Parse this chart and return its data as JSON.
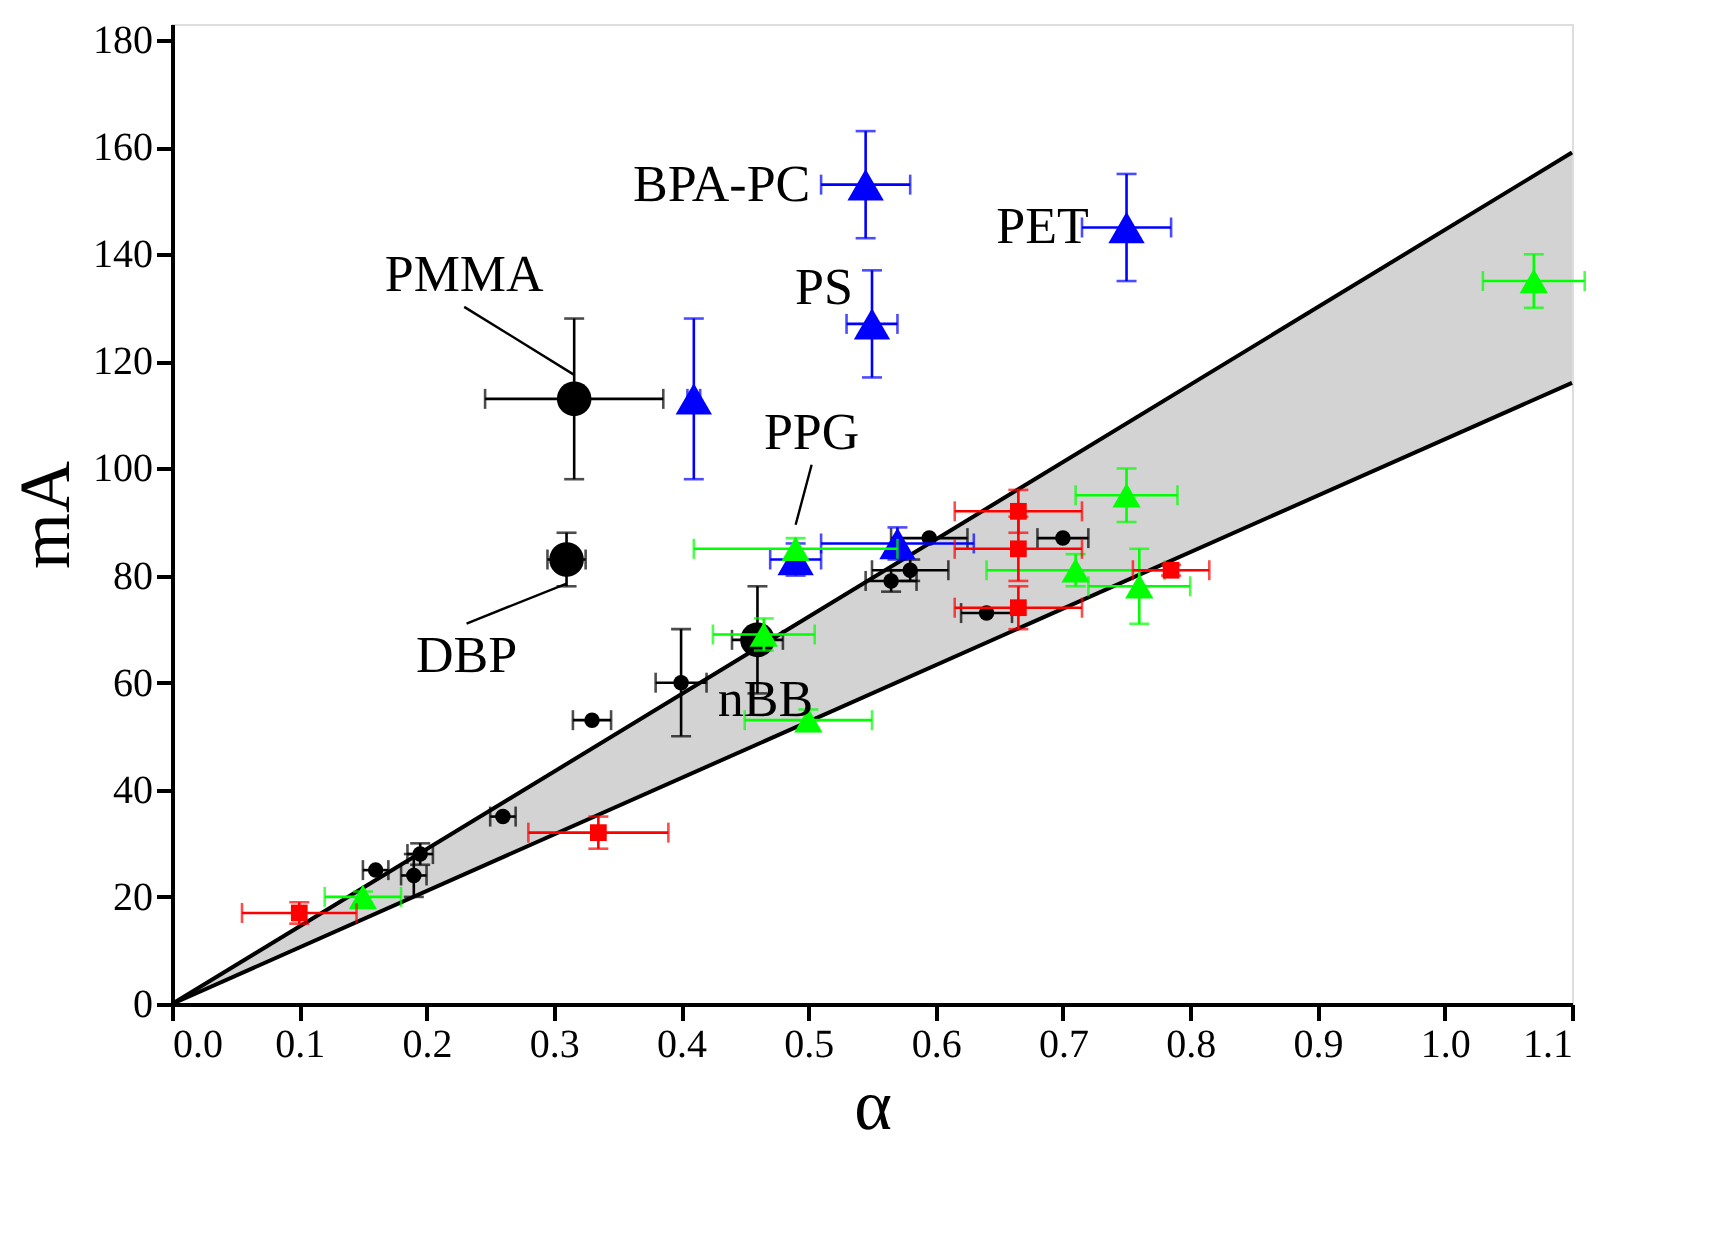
{
  "chart_data": {
    "type": "scatter",
    "xlabel": "α",
    "ylabel": "mA",
    "xlim": [
      0,
      1.1
    ],
    "ylim": [
      0,
      183
    ],
    "xticks": [
      {
        "value": 0,
        "label": "0.0"
      },
      {
        "value": 0.1,
        "label": "0.1"
      },
      {
        "value": 0.2,
        "label": "0.2"
      },
      {
        "value": 0.3,
        "label": "0.3"
      },
      {
        "value": 0.4,
        "label": "0.4"
      },
      {
        "value": 0.5,
        "label": "0.5"
      },
      {
        "value": 0.6,
        "label": "0.6"
      },
      {
        "value": 0.7,
        "label": "0.7"
      },
      {
        "value": 0.8,
        "label": "0.8"
      },
      {
        "value": 0.9,
        "label": "0.9"
      },
      {
        "value": 1.0,
        "label": "1.0"
      },
      {
        "value": 1.1,
        "label": "1.1"
      }
    ],
    "yticks": [
      0,
      20,
      40,
      60,
      80,
      100,
      120,
      140,
      160,
      180
    ],
    "grid": false,
    "series": [
      {
        "type": "line",
        "color": "#000000",
        "x": [
          0,
          1.1
        ],
        "values": [
          0,
          159
        ],
        "lower": [
          0,
          116
        ],
        "upper": [
          0,
          159
        ],
        "marker": "none"
      },
      {
        "type": "line",
        "color": "#000000",
        "x": [
          0,
          1.1
        ],
        "values": [
          0,
          116
        ],
        "marker": "none"
      },
      {
        "color": "#000000",
        "marker": "circle",
        "x": [
          0.16,
          0.19,
          0.195,
          0.26,
          0.33,
          0.4,
          0.565,
          0.58,
          0.595,
          0.64,
          0.7
        ],
        "values": [
          25,
          24,
          28,
          35,
          53,
          60,
          79,
          81,
          87,
          73,
          87
        ],
        "errors": [
          null,
          4,
          2,
          null,
          null,
          10,
          2,
          2,
          null,
          null,
          null
        ],
        "xerrors": [
          0.01,
          0.01,
          0.01,
          0.01,
          0.015,
          0.02,
          0.02,
          0.03,
          0.03,
          0.02,
          0.02
        ]
      },
      {
        "color": "#000000",
        "marker": "circle",
        "x": [
          0.316,
          0.31,
          0.46
        ],
        "values": [
          113,
          83,
          68
        ],
        "errors": [
          15,
          5,
          10
        ],
        "xerrors": [
          0.07,
          0.015,
          0.02
        ]
      },
      {
        "color": "#0000ff",
        "marker": "triangle",
        "x": [
          0.41,
          0.545,
          0.55,
          0.75,
          0.57,
          0.49
        ],
        "values": [
          113,
          153,
          127,
          145,
          86,
          83
        ],
        "errors": [
          15,
          10,
          10,
          10,
          3,
          3
        ],
        "xerrors": [
          0.005,
          0.035,
          0.02,
          0.035,
          0.06,
          0.02
        ]
      },
      {
        "color": "#00ff00",
        "marker": "triangle",
        "x": [
          0.15,
          0.465,
          0.5,
          0.49,
          0.75,
          0.71,
          0.76,
          1.07
        ],
        "values": [
          20,
          69,
          53,
          85,
          95,
          81,
          78,
          135
        ],
        "errors": [
          1,
          3,
          2,
          2,
          5,
          3,
          7,
          5
        ],
        "xerrors": [
          0.03,
          0.04,
          0.05,
          0.08,
          0.04,
          0.07,
          0.04,
          0.04
        ]
      },
      {
        "color": "#ff0000",
        "marker": "square",
        "x": [
          0.1,
          0.335,
          0.665,
          0.665,
          0.665,
          0.785
        ],
        "values": [
          17,
          32,
          92,
          85,
          74,
          81
        ],
        "errors": [
          2,
          3,
          4,
          6,
          4,
          1
        ],
        "xerrors": [
          0.045,
          0.055,
          0.05,
          0.05,
          0.05,
          0.03
        ]
      }
    ],
    "annotations": [
      {
        "text": "PMMA",
        "x": 0.316,
        "y": 113
      },
      {
        "text": "BPA-PC",
        "x": 0.545,
        "y": 153
      },
      {
        "text": "PS",
        "x": 0.55,
        "y": 127
      },
      {
        "text": "PET",
        "x": 0.75,
        "y": 145
      },
      {
        "text": "PPG",
        "x": 0.49,
        "y": 85
      },
      {
        "text": "DBP",
        "x": 0.31,
        "y": 83
      },
      {
        "text": "nBB",
        "x": 0.46,
        "y": 68
      }
    ]
  }
}
